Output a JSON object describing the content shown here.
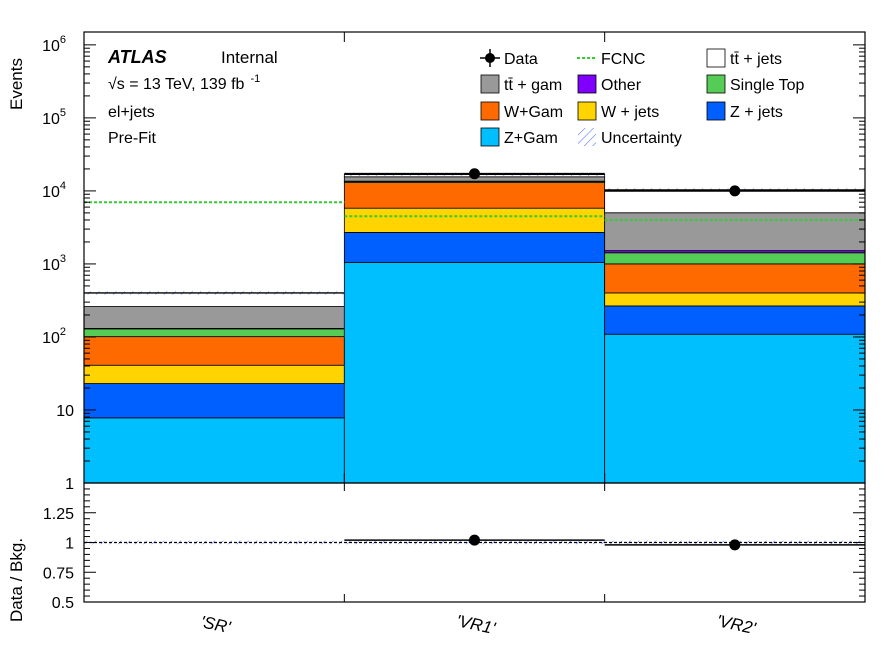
{
  "chart_data": [
    {
      "type": "bar",
      "stacked": true,
      "yscale": "log",
      "ylabel": "Events",
      "ylim": [
        1,
        1500000
      ],
      "categories": [
        "'SR'",
        "'VR1'",
        "'VR2'"
      ],
      "yticks": [
        {
          "value": 1,
          "label": "1"
        },
        {
          "value": 10,
          "label": "10"
        },
        {
          "value": 100,
          "label": "10",
          "sup": "2"
        },
        {
          "value": 1000,
          "label": "10",
          "sup": "3"
        },
        {
          "value": 10000,
          "label": "10",
          "sup": "4"
        },
        {
          "value": 100000,
          "label": "10",
          "sup": "5"
        },
        {
          "value": 1000000,
          "label": "10",
          "sup": "6"
        }
      ],
      "annotations": {
        "atlas": "ATLAS",
        "internal": "Internal",
        "energy_sqrt": "√s",
        "energy_rest": " = 13 TeV, 139 fb",
        "energy_sup": "-1",
        "channel": "el+jets",
        "stage": "Pre-Fit"
      },
      "series": [
        {
          "name": "Z+Gam",
          "color": "#00bfff",
          "values": [
            6.8,
            1050,
            108
          ]
        },
        {
          "name": "Z + jets",
          "color": "#0060ff",
          "values": [
            15.2,
            1650,
            157
          ]
        },
        {
          "name": "W + jets",
          "color": "#ffd400",
          "values": [
            18,
            3100,
            135
          ]
        },
        {
          "name": "W+Gam",
          "color": "#ff6a00",
          "values": [
            60,
            7200,
            600
          ]
        },
        {
          "name": "Single Top",
          "color": "#55cc55",
          "values": [
            28,
            500,
            420
          ]
        },
        {
          "name": "Other",
          "color": "#8000ff",
          "values": [
            2,
            100,
            100
          ]
        },
        {
          "name": "tt̄ +  gam",
          "color": "#999999",
          "values": [
            130,
            2000,
            3500
          ]
        },
        {
          "name": "tt̄ + jets",
          "color": "#ffffff",
          "values": [
            140,
            1300,
            5300
          ]
        }
      ],
      "data": {
        "name": "Data",
        "values": [
          null,
          17200,
          10000
        ]
      },
      "fcnc": {
        "name": "FCNC",
        "color": "#33cc33",
        "values": [
          7000,
          4500,
          4000
        ]
      },
      "uncertainty": {
        "name": "Uncertainty"
      },
      "legend": {
        "placement": "top-right",
        "columns": [
          [
            {
              "label": "Data",
              "kind": "data"
            },
            {
              "label": "tt̄ +  gam",
              "kind": "box",
              "color": "#999999"
            },
            {
              "label": "W+Gam",
              "kind": "box",
              "color": "#ff6a00"
            },
            {
              "label": "Z+Gam",
              "kind": "box",
              "color": "#00bfff"
            }
          ],
          [
            {
              "label": "FCNC",
              "kind": "dashed",
              "color": "#33cc33"
            },
            {
              "label": "Other",
              "kind": "box",
              "color": "#8000ff"
            },
            {
              "label": "W + jets",
              "kind": "box",
              "color": "#ffd400"
            },
            {
              "label": "Uncertainty",
              "kind": "hatch",
              "color": "#4466ff"
            }
          ],
          [
            {
              "label": "tt̄ + jets",
              "kind": "box",
              "color": "#ffffff"
            },
            {
              "label": "Single Top",
              "kind": "box",
              "color": "#55cc55"
            },
            {
              "label": "Z + jets",
              "kind": "box",
              "color": "#0060ff"
            }
          ]
        ]
      }
    },
    {
      "type": "line",
      "ylabel": "Data / Bkg.",
      "ylim": [
        0.5,
        1.5
      ],
      "yticks": [
        {
          "value": 0.5,
          "label": "0.5"
        },
        {
          "value": 0.75,
          "label": "0.75"
        },
        {
          "value": 1,
          "label": "1"
        },
        {
          "value": 1.25,
          "label": "1.25"
        }
      ],
      "categories": [
        "'SR'",
        "'VR1'",
        "'VR2'"
      ],
      "ratio": [
        null,
        1.02,
        0.98
      ],
      "reference": 1
    }
  ]
}
